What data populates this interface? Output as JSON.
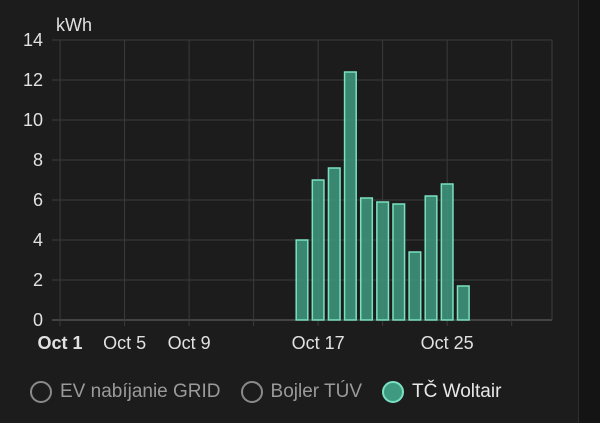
{
  "chart_data": {
    "type": "bar",
    "ylabel": "kWh",
    "ylim": [
      0,
      14
    ],
    "yticks": [
      0,
      2,
      4,
      6,
      8,
      10,
      12,
      14
    ],
    "x_tick_labels": [
      {
        "day": 1,
        "label": "Oct 1",
        "bold": true
      },
      {
        "day": 5,
        "label": "Oct 5",
        "bold": false
      },
      {
        "day": 9,
        "label": "Oct 9",
        "bold": false
      },
      {
        "day": 17,
        "label": "Oct 17",
        "bold": false
      },
      {
        "day": 25,
        "label": "Oct 25",
        "bold": false
      }
    ],
    "grid_days": [
      1,
      5,
      9,
      13,
      17,
      21,
      25,
      29
    ],
    "xlim": [
      0.5,
      31.5
    ],
    "grid": true,
    "series": [
      {
        "name": "EV nabíjanie GRID",
        "active": false,
        "values": []
      },
      {
        "name": "Bojler TÚV",
        "active": false,
        "values": []
      },
      {
        "name": "TČ Woltair",
        "active": true,
        "color": "#3e9a80",
        "border_color": "#7be0c0",
        "values": [
          {
            "day": 16,
            "value": 4.0
          },
          {
            "day": 17,
            "value": 7.0
          },
          {
            "day": 18,
            "value": 7.6
          },
          {
            "day": 19,
            "value": 12.4
          },
          {
            "day": 20,
            "value": 6.1
          },
          {
            "day": 21,
            "value": 5.9
          },
          {
            "day": 22,
            "value": 5.8
          },
          {
            "day": 23,
            "value": 3.4
          },
          {
            "day": 24,
            "value": 6.2
          },
          {
            "day": 25,
            "value": 6.8
          },
          {
            "day": 26,
            "value": 1.7
          }
        ]
      }
    ]
  },
  "legend": {
    "items": [
      {
        "label": "EV nabíjanie GRID"
      },
      {
        "label": "Bojler TÚV"
      },
      {
        "label": "TČ Woltair"
      }
    ]
  }
}
